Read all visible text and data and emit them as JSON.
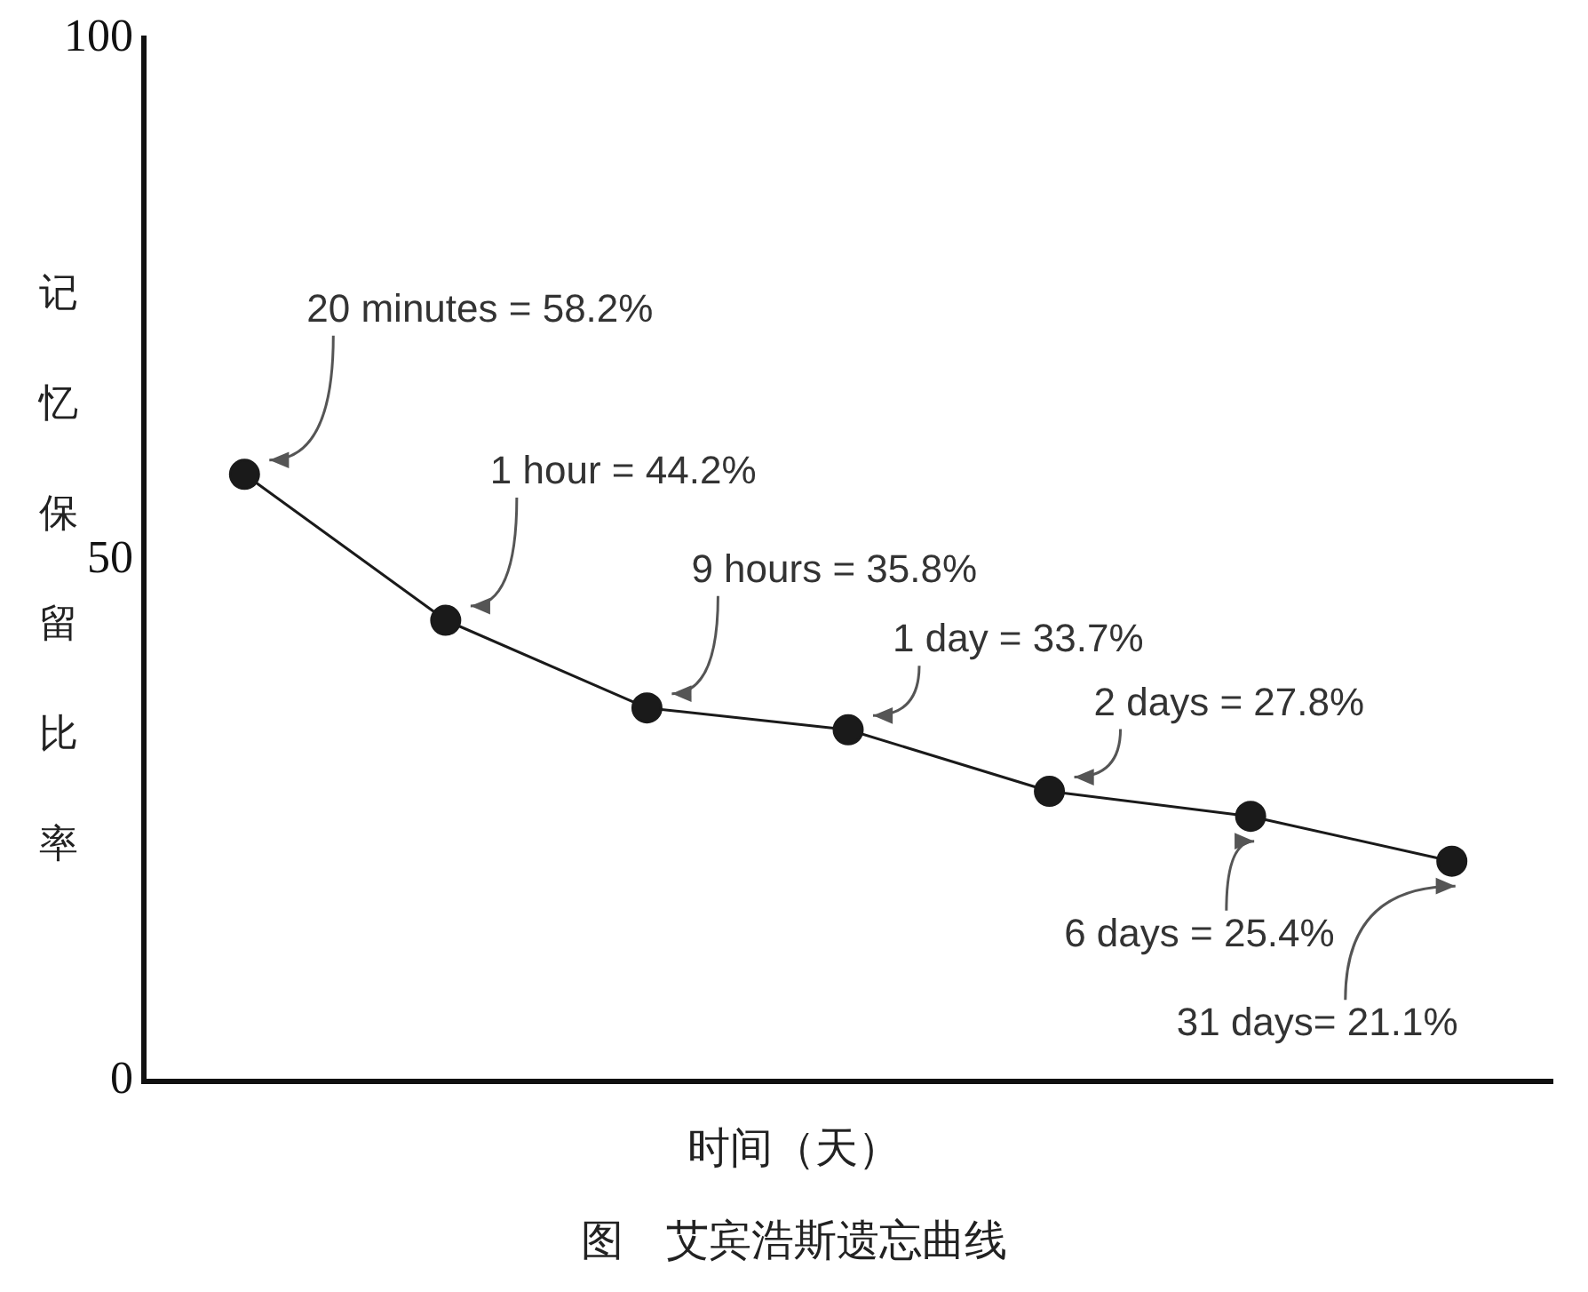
{
  "chart_data": {
    "type": "line",
    "title": "图　艾宾浩斯遗忘曲线",
    "xlabel": "时间（天）",
    "ylabel": "记忆保留比率",
    "categories": [
      null,
      null,
      null,
      null,
      null,
      null,
      null
    ],
    "values": [
      58.2,
      44.2,
      35.8,
      33.7,
      27.8,
      25.4,
      21.1
    ],
    "color": "#1a1a1a",
    "ylim": [
      0,
      100
    ],
    "yticks": [
      0,
      50,
      100
    ],
    "tick_labels": "y",
    "grid": false,
    "legend": false,
    "marker": "circle",
    "line_style": "solid",
    "annotations": [
      "20 minutes = 58.2%",
      "1 hour = 44.2%",
      "9 hours = 35.8%",
      "1 day = 33.7%",
      "2 days = 27.8%",
      "6 days = 25.4%",
      "31 days= 21.1%"
    ]
  }
}
